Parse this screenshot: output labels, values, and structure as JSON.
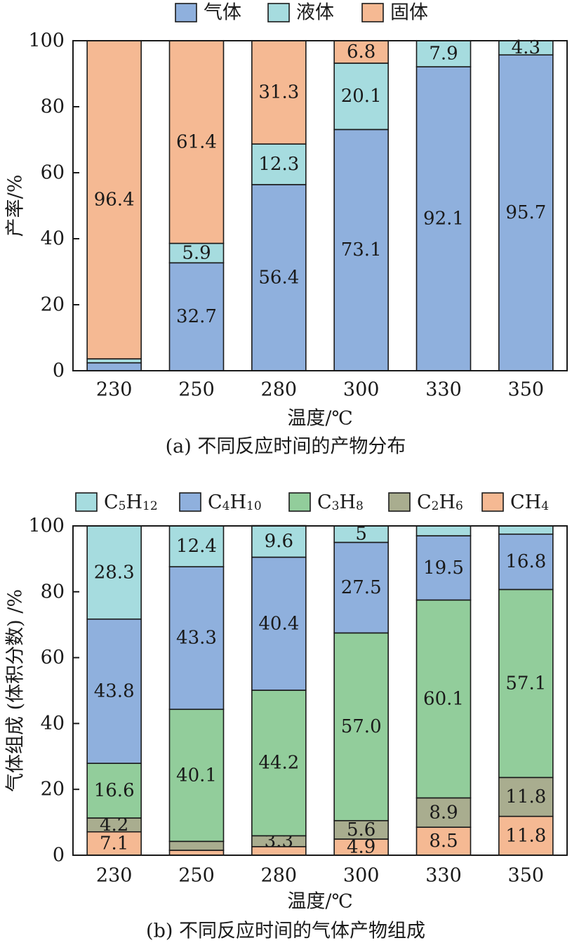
{
  "chart_data": [
    {
      "type": "bar",
      "stacked": true,
      "categories": [
        "230",
        "250",
        "280",
        "300",
        "330",
        "350"
      ],
      "series": [
        {
          "name": "气体",
          "color": "#8fb0dd",
          "values": [
            2.4,
            32.7,
            56.4,
            73.1,
            92.1,
            95.7
          ],
          "labels": [
            "",
            "32.7",
            "56.4",
            "73.1",
            "92.1",
            "95.7"
          ]
        },
        {
          "name": "液体",
          "color": "#a6dcdf",
          "values": [
            1.2,
            5.9,
            12.3,
            20.1,
            7.9,
            4.3
          ],
          "labels": [
            "",
            "5.9",
            "12.3",
            "20.1",
            "7.9",
            "4.3"
          ]
        },
        {
          "name": "固体",
          "color": "#f5b993",
          "values": [
            96.4,
            61.4,
            31.3,
            6.8,
            0,
            0
          ],
          "labels": [
            "96.4",
            "61.4",
            "31.3",
            "6.8",
            "",
            ""
          ]
        }
      ],
      "xlabel": "温度/℃",
      "ylabel": "产率/%",
      "yticks": [
        "0",
        "20",
        "40",
        "60",
        "80",
        "100"
      ],
      "ylim": [
        0,
        100
      ],
      "caption": "(a) 不同反应时间的产物分布",
      "legend": "top"
    },
    {
      "type": "bar",
      "stacked": true,
      "categories": [
        "230",
        "250",
        "280",
        "300",
        "330",
        "350"
      ],
      "series": [
        {
          "name": "CH4",
          "base": "CH",
          "sub": "4",
          "color": "#f5b993",
          "values": [
            7.1,
            1.5,
            2.6,
            4.9,
            8.5,
            11.8
          ],
          "labels": [
            "7.1",
            "",
            "",
            "4.9",
            "8.5",
            "11.8"
          ]
        },
        {
          "name": "C2H6",
          "base": "C",
          "sub": "2",
          "base2": "H",
          "sub2": "6",
          "color": "#a9ad8f",
          "values": [
            4.2,
            2.7,
            3.3,
            5.6,
            8.9,
            11.8
          ],
          "labels": [
            "4.2",
            "",
            "3.3",
            "5.6",
            "8.9",
            "11.8"
          ]
        },
        {
          "name": "C3H8",
          "base": "C",
          "sub": "3",
          "base2": "H",
          "sub2": "8",
          "color": "#92cd9b",
          "values": [
            16.6,
            40.1,
            44.2,
            57.0,
            60.1,
            57.1
          ],
          "labels": [
            "16.6",
            "40.1",
            "44.2",
            "57.0",
            "60.1",
            "57.1"
          ]
        },
        {
          "name": "C4H10",
          "base": "C",
          "sub": "4",
          "base2": "H",
          "sub2": "10",
          "color": "#8fb0dd",
          "values": [
            43.8,
            43.3,
            40.4,
            27.5,
            19.5,
            16.8
          ],
          "labels": [
            "43.8",
            "43.3",
            "40.4",
            "27.5",
            "19.5",
            "16.8"
          ]
        },
        {
          "name": "C5H12",
          "base": "C",
          "sub": "5",
          "base2": "H",
          "sub2": "12",
          "color": "#a6dcdf",
          "values": [
            28.3,
            12.4,
            9.6,
            5.0,
            3.0,
            2.5
          ],
          "labels": [
            "28.3",
            "12.4",
            "9.6",
            "5",
            "",
            ""
          ]
        }
      ],
      "legend_order": [
        "C5H12",
        "C4H10",
        "C3H8",
        "C2H6",
        "CH4"
      ],
      "xlabel": "温度/℃",
      "ylabel": "气体组成 (体积分数) /%",
      "yticks": [
        "0",
        "20",
        "40",
        "60",
        "80",
        "100"
      ],
      "ylim": [
        0,
        100
      ],
      "caption": "(b) 不同反应时间的气体产物组成",
      "legend": "top"
    }
  ]
}
